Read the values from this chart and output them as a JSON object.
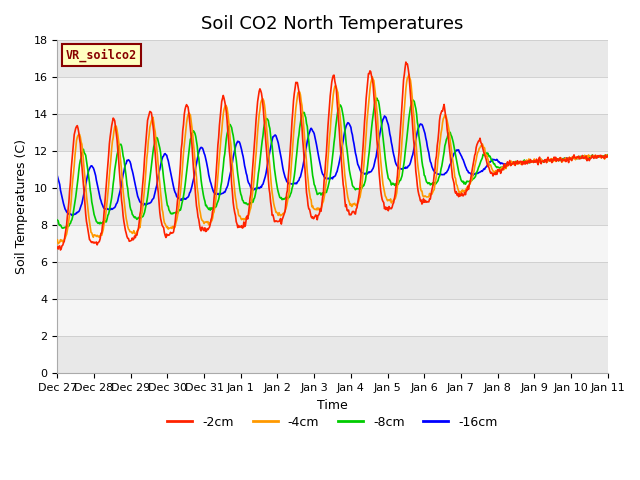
{
  "title": "Soil CO2 North Temperatures",
  "xlabel": "Time",
  "ylabel": "Soil Temperatures (C)",
  "ylim": [
    0,
    18
  ],
  "yticks": [
    0,
    2,
    4,
    6,
    8,
    10,
    12,
    14,
    16,
    18
  ],
  "xtick_labels": [
    "Dec 27",
    "Dec 28",
    "Dec 29",
    "Dec 30",
    "Dec 31",
    "Jan 1",
    "Jan 2",
    "Jan 3",
    "Jan 4",
    "Jan 5",
    "Jan 6",
    "Jan 7",
    "Jan 8",
    "Jan 9",
    "Jan 10",
    "Jan 11"
  ],
  "series_colors": [
    "#ff2200",
    "#ff9900",
    "#00cc00",
    "#0000ff"
  ],
  "series_labels": [
    "-2cm",
    "-4cm",
    "-8cm",
    "-16cm"
  ],
  "legend_box_label": "VR_soilco2",
  "legend_box_facecolor": "#ffffc0",
  "legend_box_edgecolor": "#880000",
  "title_fontsize": 13,
  "axis_fontsize": 9,
  "tick_fontsize": 8,
  "n_days": 15,
  "band_colors": [
    "#e8e8e8",
    "#f5f5f5"
  ]
}
